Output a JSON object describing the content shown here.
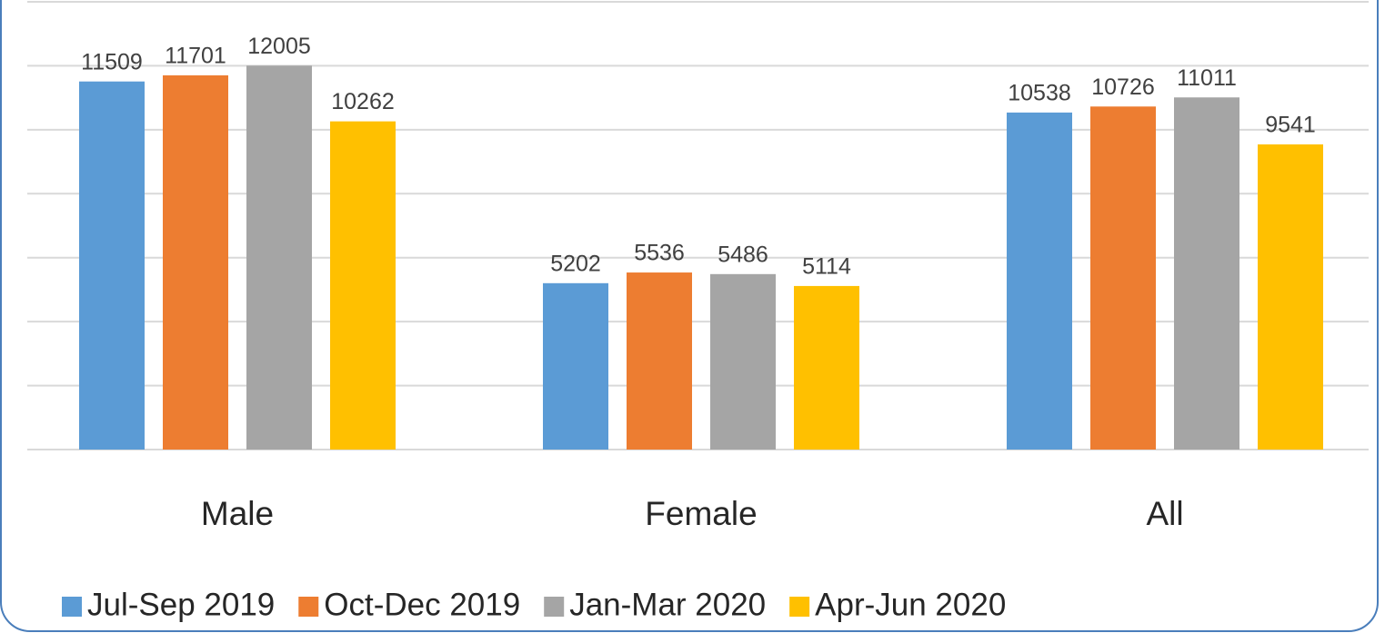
{
  "chart_data": {
    "type": "bar",
    "categories": [
      "Male",
      "Female",
      "All"
    ],
    "series": [
      {
        "name": "Jul-Sep 2019",
        "color": "#5b9bd5",
        "values": [
          11509,
          5202,
          10538
        ]
      },
      {
        "name": "Oct-Dec 2019",
        "color": "#ed7d31",
        "values": [
          11701,
          5536,
          10726
        ]
      },
      {
        "name": "Jan-Mar 2020",
        "color": "#a5a5a5",
        "values": [
          12005,
          5486,
          11011
        ]
      },
      {
        "name": "Apr-Jun 2020",
        "color": "#ffc000",
        "values": [
          10262,
          5114,
          9541
        ]
      }
    ],
    "ylim": [
      0,
      14000
    ],
    "yticks": [
      0,
      2000,
      4000,
      6000,
      8000,
      10000,
      12000,
      14000
    ],
    "grid": true,
    "legend": "bottom"
  }
}
